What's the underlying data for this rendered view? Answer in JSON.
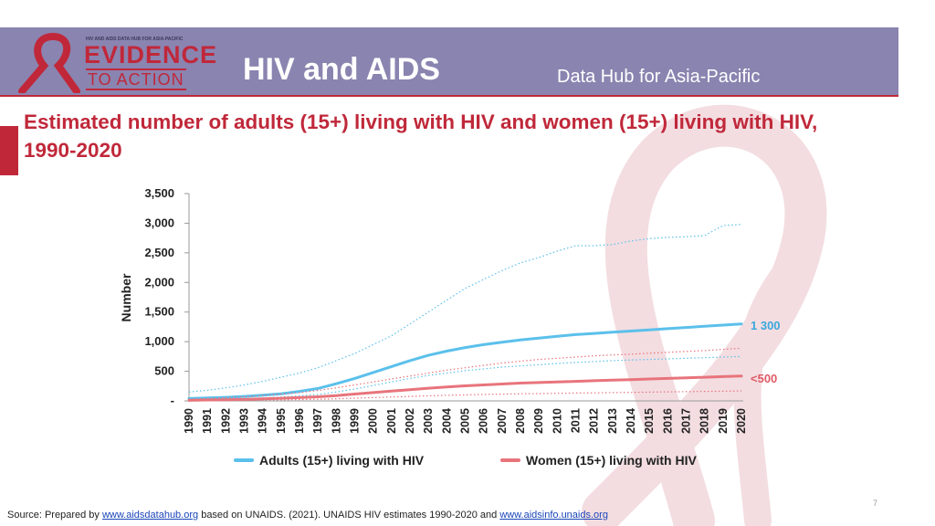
{
  "header": {
    "logo_top_text": "HIV AND AIDS DATA HUB FOR ASIA-PACIFIC",
    "logo_line1": "EVIDENCE",
    "logo_line2": "TO ACTION",
    "title": "HIV and AIDS",
    "subtitle": "Data Hub for Asia-Pacific"
  },
  "colors": {
    "header_band": "#8a84b0",
    "accent_red": "#c0283a",
    "adults_series": "#5bc0eb",
    "women_series": "#e8747c",
    "ribbon": "#f1d9dd"
  },
  "slide": {
    "title": "Estimated number of adults (15+) living with HIV and women (15+) living with HIV, 1990-2020"
  },
  "chart_data": {
    "type": "line",
    "ylabel": "Number",
    "x": [
      "1990",
      "1991",
      "1992",
      "1993",
      "1994",
      "1995",
      "1996",
      "1997",
      "1998",
      "1999",
      "2000",
      "2001",
      "2002",
      "2003",
      "2004",
      "2005",
      "2006",
      "2007",
      "2008",
      "2009",
      "2010",
      "2011",
      "2012",
      "2013",
      "2014",
      "2015",
      "2016",
      "2017",
      "2018",
      "2019",
      "2020"
    ],
    "ylim": [
      0,
      3500
    ],
    "yticks": [
      "-",
      "500",
      "1,000",
      "1,500",
      "2,000",
      "2,500",
      "3,000",
      "3,500"
    ],
    "grid": false,
    "legend_position": "bottom",
    "series": [
      {
        "name": "Adults  (15+) living with HIV",
        "color": "#5bc0eb",
        "values": [
          40,
          50,
          60,
          75,
          95,
          120,
          160,
          210,
          290,
          380,
          480,
          580,
          680,
          770,
          840,
          900,
          950,
          990,
          1030,
          1060,
          1090,
          1120,
          1140,
          1160,
          1180,
          1200,
          1220,
          1240,
          1260,
          1280,
          1300
        ],
        "lower": [
          20,
          25,
          30,
          40,
          50,
          65,
          85,
          110,
          150,
          200,
          260,
          320,
          380,
          430,
          470,
          510,
          540,
          570,
          590,
          610,
          630,
          650,
          665,
          680,
          690,
          700,
          710,
          720,
          730,
          740,
          750
        ],
        "upper": [
          150,
          180,
          220,
          270,
          330,
          400,
          470,
          560,
          680,
          800,
          950,
          1100,
          1300,
          1500,
          1700,
          1900,
          2050,
          2200,
          2330,
          2420,
          2530,
          2620,
          2620,
          2640,
          2700,
          2740,
          2760,
          2770,
          2790,
          2960,
          2980
        ],
        "end_label": "1 300"
      },
      {
        "name": "Women  (15+) living with HIV",
        "color": "#e8747c",
        "values": [
          10,
          15,
          20,
          25,
          35,
          45,
          55,
          70,
          90,
          115,
          140,
          165,
          190,
          215,
          235,
          255,
          270,
          285,
          300,
          310,
          320,
          330,
          340,
          350,
          360,
          370,
          380,
          390,
          400,
          410,
          420
        ],
        "lower": [
          5,
          6,
          8,
          10,
          14,
          18,
          22,
          28,
          36,
          46,
          56,
          66,
          76,
          86,
          94,
          102,
          108,
          114,
          120,
          124,
          128,
          132,
          136,
          140,
          144,
          148,
          152,
          156,
          160,
          164,
          168
        ],
        "upper": [
          30,
          40,
          55,
          70,
          90,
          115,
          140,
          175,
          220,
          270,
          320,
          370,
          420,
          470,
          520,
          560,
          600,
          640,
          670,
          700,
          720,
          740,
          760,
          775,
          790,
          805,
          820,
          835,
          850,
          870,
          890
        ],
        "end_label": "<500"
      }
    ]
  },
  "footer": {
    "prefix": "Source: Prepared by ",
    "link1": "www.aidsdatahub.org",
    "middle": "  based on UNAIDS. (2021). UNAIDS HIV estimates 1990-2020 and ",
    "link2": "www.aidsinfo.unaids.org",
    "page_number": "7"
  }
}
